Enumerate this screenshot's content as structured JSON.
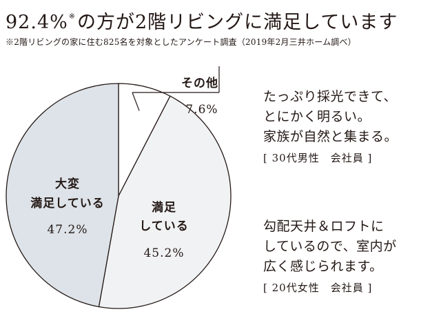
{
  "headline": {
    "value": "92.4%",
    "mark": "※",
    "text": "の方が2階リビングに満足しています"
  },
  "note": "※2階リビングの家に住む825名を対象としたアンケート調査（2019年2月三井ホーム調べ）",
  "chart_data": {
    "type": "pie",
    "start_angle_deg": 0,
    "direction": "clockwise",
    "slices": [
      {
        "label": "その他",
        "value": 7.6,
        "display": "7.6%",
        "color": "#ffffff",
        "label_position": "outside-top"
      },
      {
        "label_lines": [
          "満足",
          "している"
        ],
        "value": 45.2,
        "display": "45.2%",
        "color": "#f1f2f3"
      },
      {
        "label_lines": [
          "大変",
          "満足している"
        ],
        "value": 47.2,
        "display": "47.2%",
        "color": "#dde3e8"
      }
    ]
  },
  "quotes": [
    {
      "lines": [
        "たっぷり採光できて、",
        "とにかく明るい。",
        "家族が自然と集まる。"
      ],
      "author": "[ 30代男性　会社員 ]"
    },
    {
      "lines": [
        "勾配天井＆ロフトに",
        "しているので、室内が",
        "広く感じられます。"
      ],
      "author": "[ 20代女性　会社員 ]"
    }
  ]
}
